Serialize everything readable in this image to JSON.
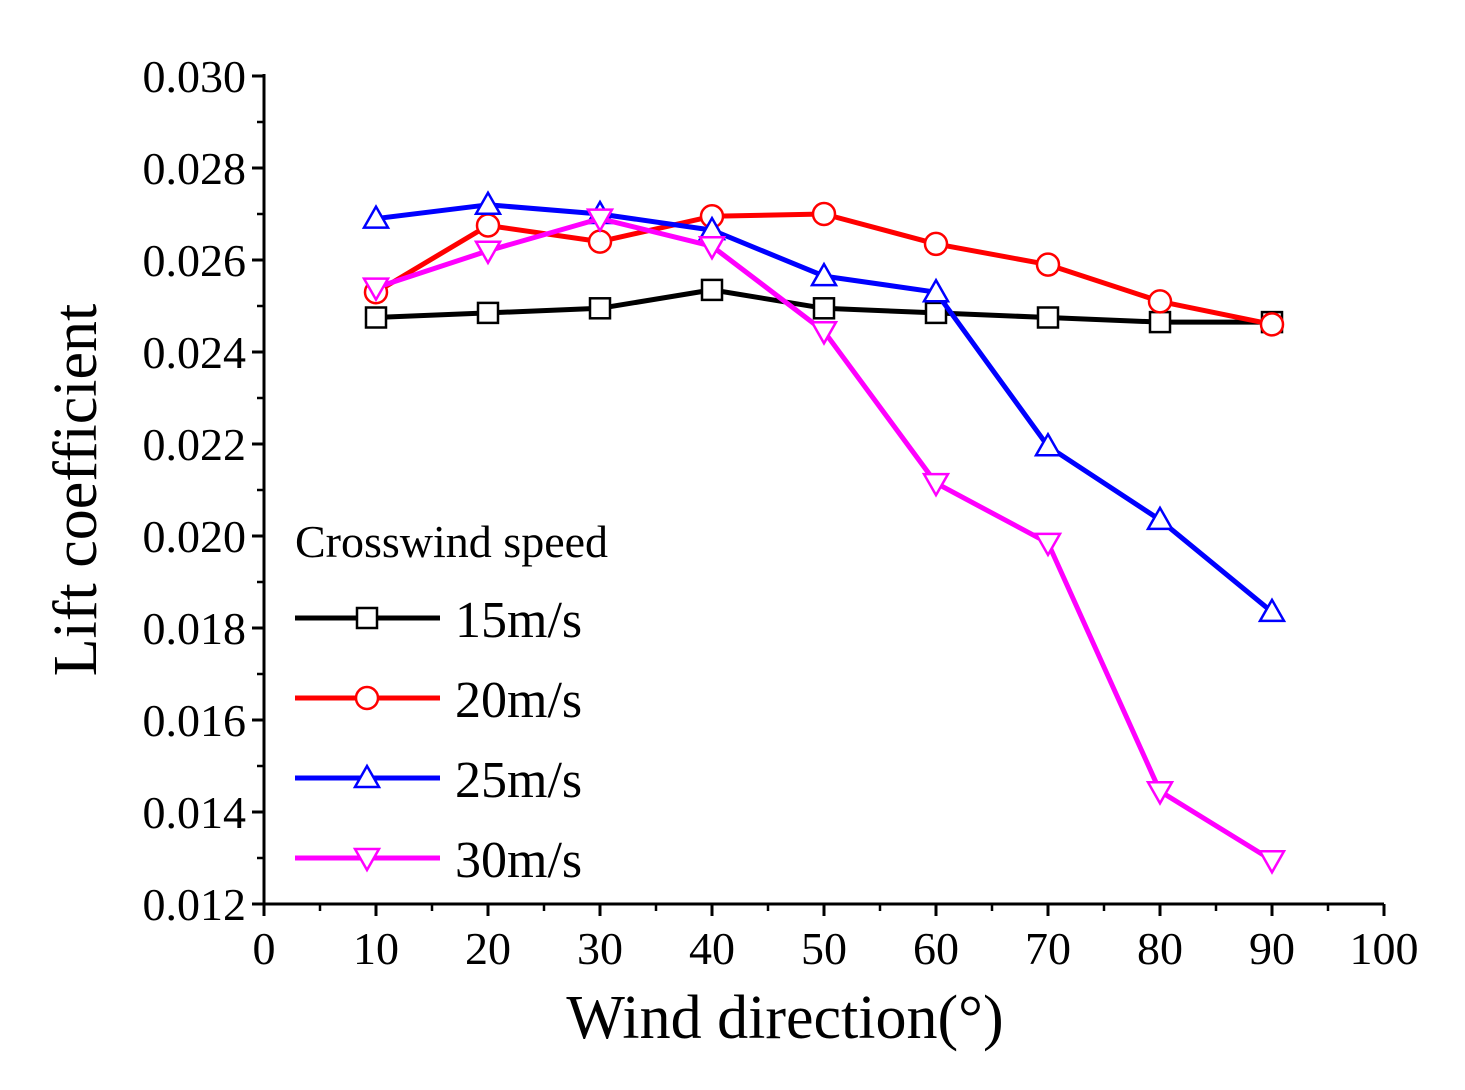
{
  "chart_data": {
    "type": "line",
    "title": "",
    "xlabel": "Wind direction(°)",
    "ylabel": "Lift coefficient",
    "xlim": [
      0,
      100
    ],
    "ylim": [
      0.012,
      0.03
    ],
    "x_ticks": [
      "0",
      "10",
      "20",
      "30",
      "40",
      "50",
      "60",
      "70",
      "80",
      "90",
      "100"
    ],
    "y_ticks": [
      "0.012",
      "0.014",
      "0.016",
      "0.018",
      "0.020",
      "0.022",
      "0.024",
      "0.026",
      "0.028",
      "0.030"
    ],
    "grid": false,
    "legend_title": "Crosswind speed",
    "legend_position": "lower-left",
    "x": [
      10,
      20,
      30,
      40,
      50,
      60,
      70,
      80,
      90
    ],
    "series": [
      {
        "name": "15m/s",
        "color": "#000000",
        "marker": "square",
        "values": [
          0.02475,
          0.02485,
          0.02495,
          0.02535,
          0.02495,
          0.02485,
          0.02475,
          0.02465,
          0.02465
        ]
      },
      {
        "name": "20m/s",
        "color": "#ff0000",
        "marker": "circle",
        "values": [
          0.0253,
          0.02675,
          0.0264,
          0.02695,
          0.027,
          0.02635,
          0.0259,
          0.0251,
          0.0246
        ]
      },
      {
        "name": "25m/s",
        "color": "#0000ff",
        "marker": "triangle-up",
        "values": [
          0.0269,
          0.0272,
          0.027,
          0.02665,
          0.02565,
          0.0253,
          0.02195,
          0.02035,
          0.01835
        ]
      },
      {
        "name": "30m/s",
        "color": "#ff00ff",
        "marker": "triangle-down",
        "values": [
          0.0254,
          0.0262,
          0.0269,
          0.0263,
          0.02445,
          0.02115,
          0.01985,
          0.01445,
          0.01295
        ]
      }
    ]
  }
}
